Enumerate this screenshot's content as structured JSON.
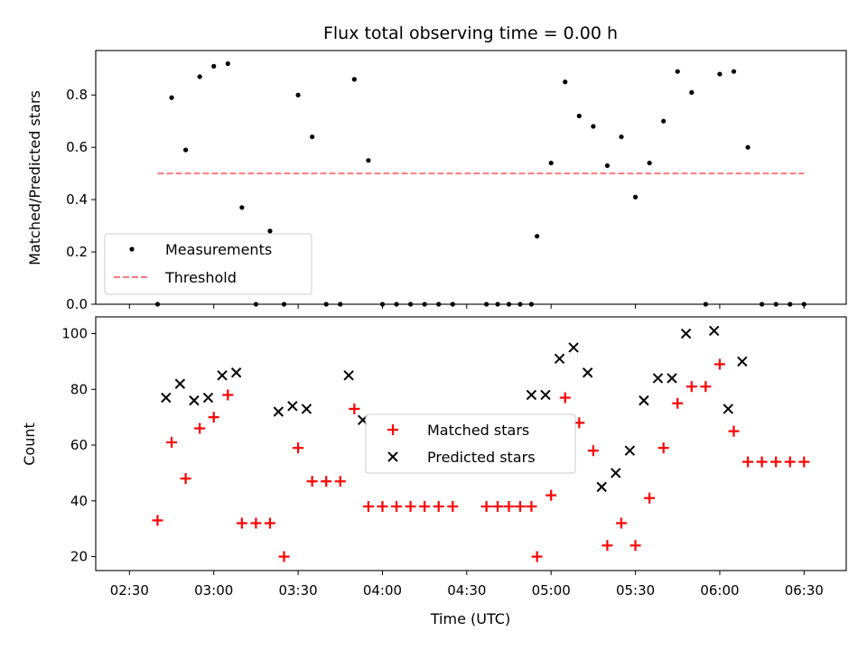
{
  "chart_data": [
    {
      "type": "scatter",
      "title": "Flux total observing time = 0.00 h",
      "ylabel": "Matched/Predicted stars",
      "xlabel": "",
      "xlim": [
        "02:18",
        "06:45"
      ],
      "ylim": [
        0,
        0.97
      ],
      "yticks": [
        0.0,
        0.2,
        0.4,
        0.6,
        0.8
      ],
      "ytick_labels": [
        "0.0",
        "0.2",
        "0.4",
        "0.6",
        "0.8"
      ],
      "grid": false,
      "legend_position": "lower-left",
      "series": [
        {
          "name": "Measurements",
          "marker": "dot",
          "color": "#000000",
          "x": [
            "02:40",
            "02:45",
            "02:50",
            "02:55",
            "03:00",
            "03:05",
            "03:10",
            "03:15",
            "03:20",
            "03:25",
            "03:30",
            "03:35",
            "03:40",
            "03:45",
            "03:50",
            "03:55",
            "04:00",
            "04:05",
            "04:10",
            "04:15",
            "04:20",
            "04:25",
            "04:37",
            "04:41",
            "04:45",
            "04:49",
            "04:53",
            "04:55",
            "05:00",
            "05:05",
            "05:10",
            "05:15",
            "05:20",
            "05:25",
            "05:30",
            "05:35",
            "05:40",
            "05:45",
            "05:50",
            "05:55",
            "06:00",
            "06:05",
            "06:10",
            "06:15",
            "06:20",
            "06:25",
            "06:30"
          ],
          "values": [
            0.0,
            0.79,
            0.59,
            0.87,
            0.91,
            0.92,
            0.37,
            0.0,
            0.28,
            0.0,
            0.8,
            0.64,
            0.0,
            0.0,
            0.86,
            0.55,
            0.0,
            0.0,
            0.0,
            0.0,
            0.0,
            0.0,
            0.0,
            0.0,
            0.0,
            0.0,
            0.0,
            0.26,
            0.54,
            0.85,
            0.72,
            0.68,
            0.53,
            0.64,
            0.41,
            0.54,
            0.7,
            0.89,
            0.81,
            0.0,
            0.88,
            0.89,
            0.6,
            0.0,
            0.0,
            0.0,
            0.0
          ]
        },
        {
          "name": "Threshold",
          "line_style": "dashed",
          "color": "#f77c7c",
          "x": [
            "02:40",
            "06:30"
          ],
          "values": [
            0.5,
            0.5
          ]
        }
      ]
    },
    {
      "type": "scatter",
      "title": "",
      "xlabel": "Time (UTC)",
      "ylabel": "Count",
      "xlim": [
        "02:18",
        "06:45"
      ],
      "ylim": [
        15,
        106
      ],
      "xtick_labels": [
        "02:30",
        "03:00",
        "03:30",
        "04:00",
        "04:30",
        "05:00",
        "05:30",
        "06:00",
        "06:30"
      ],
      "yticks": [
        20,
        40,
        60,
        80,
        100
      ],
      "ytick_labels": [
        "20",
        "40",
        "60",
        "80",
        "100"
      ],
      "grid": false,
      "legend_position": "center",
      "series": [
        {
          "name": "Matched stars",
          "marker": "plus",
          "color": "#ff0000",
          "x": [
            "02:40",
            "02:45",
            "02:50",
            "02:55",
            "03:00",
            "03:05",
            "03:10",
            "03:15",
            "03:20",
            "03:25",
            "03:30",
            "03:35",
            "03:40",
            "03:45",
            "03:50",
            "03:55",
            "04:00",
            "04:05",
            "04:10",
            "04:15",
            "04:20",
            "04:25",
            "04:37",
            "04:41",
            "04:45",
            "04:49",
            "04:53",
            "04:55",
            "05:00",
            "05:05",
            "05:10",
            "05:15",
            "05:20",
            "05:25",
            "05:30",
            "05:35",
            "05:40",
            "05:45",
            "05:50",
            "05:55",
            "06:00",
            "06:05",
            "06:10",
            "06:15",
            "06:20",
            "06:25",
            "06:30"
          ],
          "values": [
            33,
            61,
            48,
            66,
            70,
            78,
            32,
            32,
            32,
            20,
            59,
            47,
            47,
            47,
            73,
            38,
            38,
            38,
            38,
            38,
            38,
            38,
            38,
            38,
            38,
            38,
            38,
            20,
            42,
            77,
            68,
            58,
            24,
            32,
            24,
            41,
            59,
            75,
            81,
            81,
            89,
            65,
            54,
            54,
            54,
            54,
            54
          ]
        },
        {
          "name": "Predicted stars",
          "marker": "x",
          "color": "#000000",
          "x": [
            "02:43",
            "02:48",
            "02:53",
            "02:58",
            "03:03",
            "03:08",
            "03:23",
            "03:28",
            "03:33",
            "03:48",
            "03:53",
            "04:53",
            "04:58",
            "05:03",
            "05:08",
            "05:13",
            "05:18",
            "05:23",
            "05:28",
            "05:33",
            "05:38",
            "05:43",
            "05:48",
            "05:58",
            "06:03",
            "06:08"
          ],
          "values": [
            77,
            82,
            76,
            77,
            85,
            86,
            72,
            74,
            73,
            85,
            69,
            78,
            78,
            91,
            95,
            86,
            45,
            50,
            58,
            76,
            84,
            84,
            100,
            101,
            73,
            90
          ]
        }
      ]
    }
  ]
}
